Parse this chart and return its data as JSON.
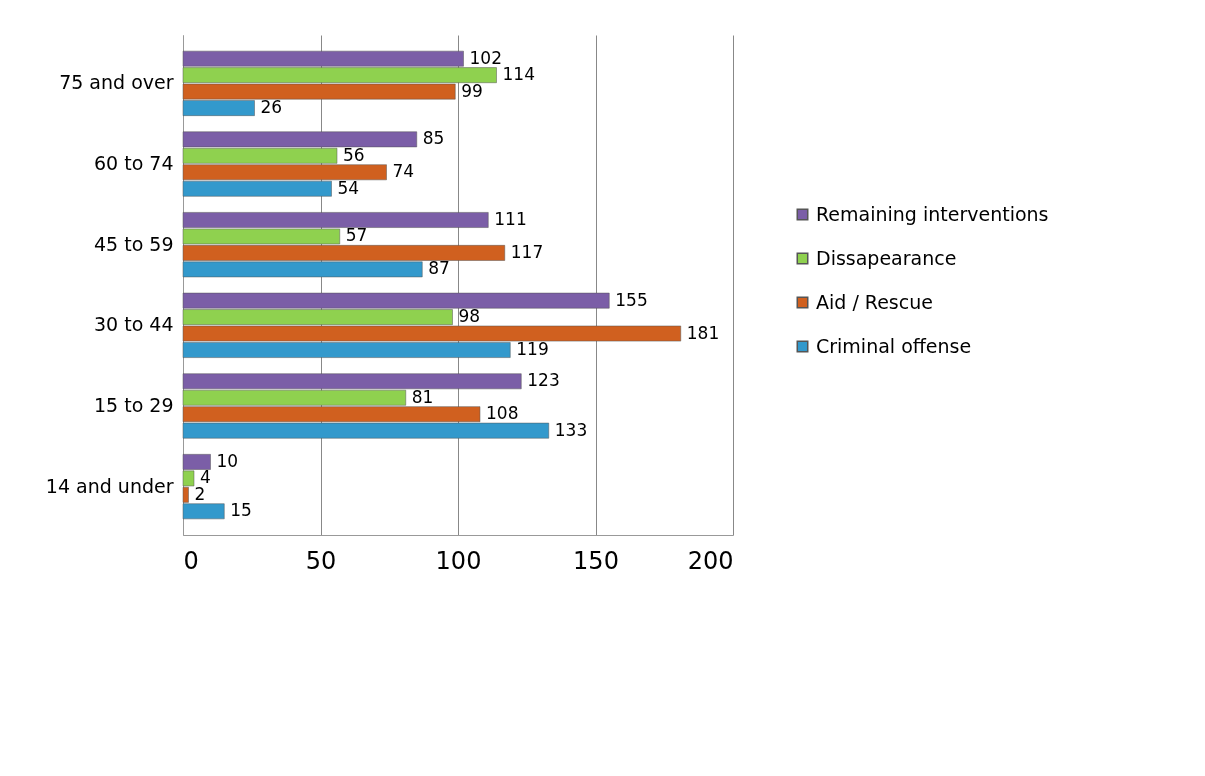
{
  "chart_data": {
    "type": "bar",
    "orientation": "horizontal",
    "categories": [
      "75 and over",
      "60 to 74",
      "45 to 59",
      "30 to 44",
      "15 to 29",
      "14 and under"
    ],
    "series": [
      {
        "name": "Remaining interventions",
        "color": "#7b5ea7",
        "values": [
          102,
          85,
          111,
          155,
          123,
          10
        ]
      },
      {
        "name": "Dissapearance",
        "color": "#8fd14f",
        "values": [
          114,
          56,
          57,
          98,
          81,
          4
        ]
      },
      {
        "name": "Aid / Rescue",
        "color": "#d0601f",
        "values": [
          99,
          74,
          117,
          181,
          108,
          2
        ]
      },
      {
        "name": "Criminal offense",
        "color": "#3399cc",
        "values": [
          26,
          54,
          87,
          119,
          133,
          15
        ]
      }
    ],
    "xlim": [
      0,
      200
    ],
    "xticks": [
      0,
      50,
      100,
      150,
      200
    ],
    "grid": "x",
    "legend": "right",
    "data_labels": true
  }
}
